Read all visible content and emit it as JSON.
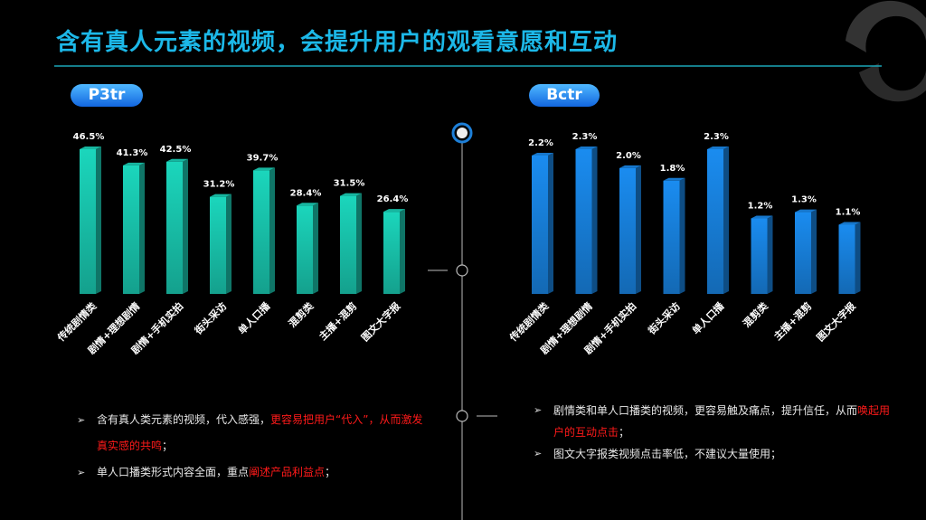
{
  "title": "含有真人元素的视频，会提升用户的观看意愿和互动",
  "chart_data": [
    {
      "type": "bar",
      "title": "P3tr",
      "color": "#1bd6bc",
      "categories": [
        "传统剧情类",
        "剧情+理想剧情",
        "剧情+手机实拍",
        "街头采访",
        "单人口播",
        "混剪类",
        "主播+混剪",
        "图文大字报"
      ],
      "values": [
        46.5,
        41.3,
        42.5,
        31.2,
        39.7,
        28.4,
        31.5,
        26.4
      ],
      "value_labels": [
        "46.5%",
        "41.3%",
        "42.5%",
        "31.2%",
        "39.7%",
        "28.4%",
        "31.5%",
        "26.4%"
      ]
    },
    {
      "type": "bar",
      "title": "Bctr",
      "color": "#1a8cf0",
      "categories": [
        "传统剧情类",
        "剧情+理想剧情",
        "剧情+手机实拍",
        "街头采访",
        "单人口播",
        "混剪类",
        "主播+混剪",
        "图文大字报"
      ],
      "values": [
        2.2,
        2.3,
        2.0,
        1.8,
        2.3,
        1.2,
        1.3,
        1.1
      ],
      "value_labels": [
        "2.2%",
        "2.3%",
        "2.0%",
        "1.8%",
        "2.3%",
        "1.2%",
        "1.3%",
        "1.1%"
      ]
    }
  ],
  "bullets": [
    [
      [
        {
          "text": "含有真人类元素的视频，代入感强，",
          "highlight": false
        },
        {
          "text": "更容易把用户“代入”，从而激发真实感的共鸣",
          "highlight": true
        },
        {
          "text": "；",
          "highlight": false
        }
      ],
      [
        {
          "text": "单人口播类形式内容全面，重点",
          "highlight": false
        },
        {
          "text": "阐述产品利益点",
          "highlight": true
        },
        {
          "text": "；",
          "highlight": false
        }
      ]
    ],
    [
      [
        {
          "text": "剧情类和单人口播类的视频，更容易触及痛点，提升信任，从而",
          "highlight": false
        },
        {
          "text": "唤起用户的互动点击",
          "highlight": true
        },
        {
          "text": "；",
          "highlight": false
        }
      ],
      [
        {
          "text": "图文大字报类视频点击率低，不建议大量使用；",
          "highlight": false
        }
      ]
    ]
  ]
}
